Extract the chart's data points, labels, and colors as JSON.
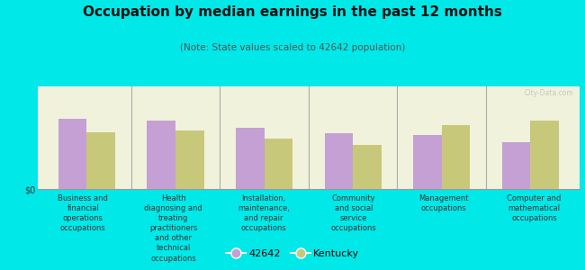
{
  "title": "Occupation by median earnings in the past 12 months",
  "subtitle": "(Note: State values scaled to 42642 population)",
  "categories": [
    "Business and\nfinancial\noperations\noccupations",
    "Health\ndiagnosing and\ntreating\npractitioners\nand other\ntechnical\noccupations",
    "Installation,\nmaintenance,\nand repair\noccupations",
    "Community\nand social\nservice\noccupations",
    "Management\noccupations",
    "Computer and\nmathematical\noccupations"
  ],
  "values_42642": [
    0.72,
    0.7,
    0.63,
    0.57,
    0.55,
    0.48
  ],
  "values_kentucky": [
    0.58,
    0.6,
    0.52,
    0.45,
    0.65,
    0.7
  ],
  "color_42642": "#c4a0d4",
  "color_kentucky": "#c8c87a",
  "plot_bg_color": "#f0f2dc",
  "outer_bg": "#00e8e8",
  "legend_42642": "42642",
  "legend_kentucky": "Kentucky",
  "title_fontsize": 11,
  "subtitle_fontsize": 7.5,
  "tick_fontsize": 7,
  "cat_fontsize": 6.0,
  "legend_fontsize": 8,
  "watermark": "City-Data.com"
}
